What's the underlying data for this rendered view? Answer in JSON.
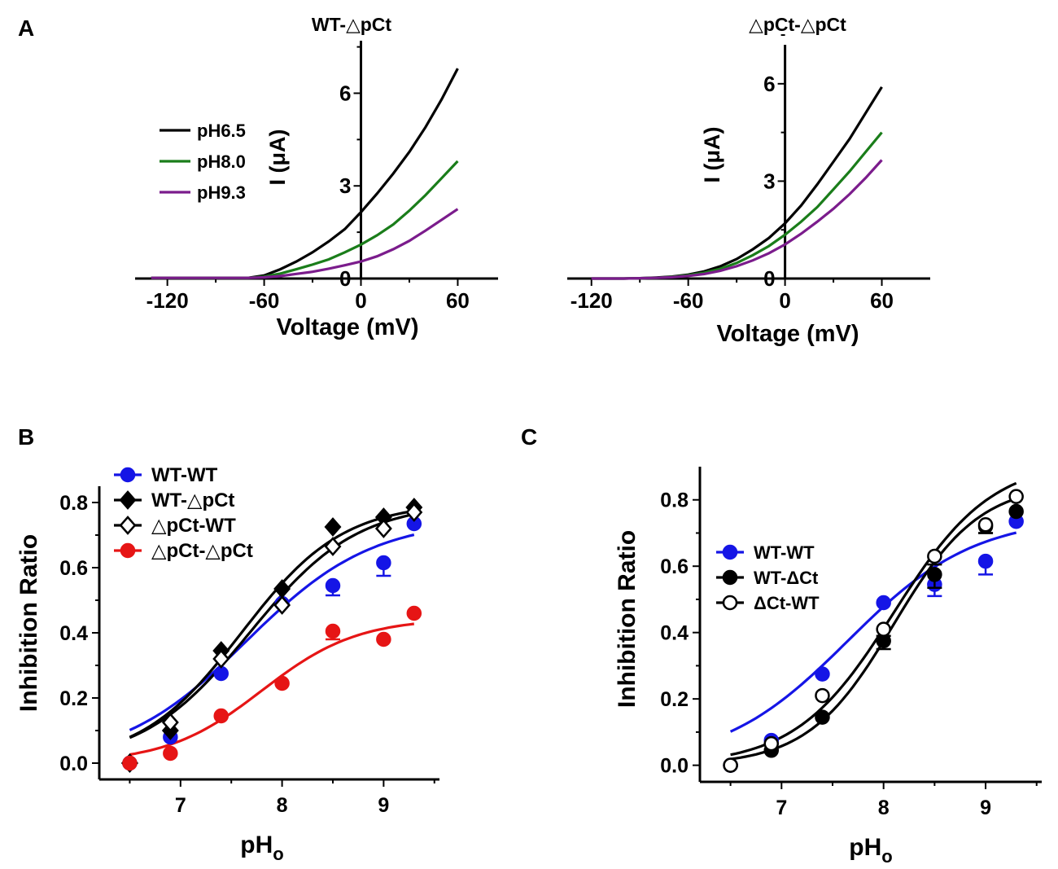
{
  "panel_labels": {
    "a": "A",
    "b": "B",
    "c": "C"
  },
  "chart_data": [
    {
      "id": "A1",
      "type": "line",
      "title": "WT-△pCt",
      "xlabel": "Voltage (mV)",
      "ylabel": "I (μA)",
      "xlim": [
        -140,
        85
      ],
      "ylim": [
        0,
        7.7
      ],
      "xticks": [
        -120,
        -60,
        0,
        60
      ],
      "xtick_labels": [
        "-120",
        "-60",
        "0",
        "60"
      ],
      "yticks": [
        0,
        3,
        6
      ],
      "ytick_labels": [
        "0",
        "3",
        "6"
      ],
      "legend": "left",
      "series": [
        {
          "name": "pH6.5",
          "color": "#000000",
          "x": [
            -130,
            -120,
            -110,
            -100,
            -90,
            -80,
            -70,
            -60,
            -50,
            -40,
            -30,
            -20,
            -10,
            0,
            10,
            20,
            30,
            40,
            50,
            60
          ],
          "y": [
            0.02,
            0.02,
            0.02,
            0.02,
            0.02,
            0.02,
            0.02,
            0.1,
            0.3,
            0.55,
            0.85,
            1.2,
            1.6,
            2.15,
            2.75,
            3.4,
            4.1,
            4.9,
            5.8,
            6.8
          ]
        },
        {
          "name": "pH8.0",
          "color": "#1a7d1a",
          "x": [
            -130,
            -120,
            -110,
            -100,
            -90,
            -80,
            -70,
            -60,
            -50,
            -40,
            -30,
            -20,
            -10,
            0,
            10,
            20,
            30,
            40,
            50,
            60
          ],
          "y": [
            0.02,
            0.02,
            0.02,
            0.02,
            0.02,
            0.02,
            0.02,
            0.06,
            0.16,
            0.3,
            0.45,
            0.62,
            0.85,
            1.1,
            1.4,
            1.75,
            2.2,
            2.7,
            3.25,
            3.8
          ]
        },
        {
          "name": "pH9.3",
          "color": "#7b1c8c",
          "x": [
            -130,
            -120,
            -110,
            -100,
            -90,
            -80,
            -70,
            -60,
            -50,
            -40,
            -30,
            -20,
            -10,
            0,
            10,
            20,
            30,
            40,
            50,
            60
          ],
          "y": [
            0.02,
            0.02,
            0.02,
            0.02,
            0.02,
            0.02,
            0.02,
            0.04,
            0.08,
            0.15,
            0.22,
            0.32,
            0.43,
            0.55,
            0.72,
            0.95,
            1.22,
            1.55,
            1.9,
            2.25
          ]
        }
      ]
    },
    {
      "id": "A2",
      "type": "line",
      "title": "△pCt-△pCt",
      "xlabel": "Voltage (mV)",
      "ylabel": "I (μA)",
      "xlim": [
        -135,
        90
      ],
      "ylim": [
        0,
        7.2
      ],
      "xticks": [
        -120,
        -60,
        0,
        60
      ],
      "xtick_labels": [
        "-120",
        "-60",
        "0",
        "60"
      ],
      "yticks": [
        0,
        3,
        6
      ],
      "ytick_labels": [
        "0",
        "3",
        "6"
      ],
      "series": [
        {
          "name": "pH6.5",
          "color": "#000000",
          "x": [
            -120,
            -110,
            -100,
            -90,
            -80,
            -70,
            -60,
            -50,
            -40,
            -30,
            -20,
            -10,
            0,
            10,
            20,
            30,
            40,
            50,
            60
          ],
          "y": [
            0.0,
            0.0,
            0.0,
            0.01,
            0.03,
            0.06,
            0.12,
            0.22,
            0.38,
            0.6,
            0.9,
            1.25,
            1.7,
            2.25,
            2.9,
            3.6,
            4.3,
            5.1,
            5.9
          ]
        },
        {
          "name": "pH8.0",
          "color": "#1a7d1a",
          "x": [
            -120,
            -110,
            -100,
            -90,
            -80,
            -70,
            -60,
            -50,
            -40,
            -30,
            -20,
            -10,
            0,
            10,
            20,
            30,
            40,
            50,
            60
          ],
          "y": [
            0.0,
            0.0,
            0.0,
            0.01,
            0.02,
            0.05,
            0.1,
            0.18,
            0.3,
            0.48,
            0.72,
            1.0,
            1.35,
            1.75,
            2.2,
            2.75,
            3.3,
            3.9,
            4.5
          ]
        },
        {
          "name": "pH9.3",
          "color": "#7b1c8c",
          "x": [
            -120,
            -110,
            -100,
            -90,
            -80,
            -70,
            -60,
            -50,
            -40,
            -30,
            -20,
            -10,
            0,
            10,
            20,
            30,
            40,
            50,
            60
          ],
          "y": [
            0.0,
            0.0,
            0.0,
            0.01,
            0.02,
            0.04,
            0.08,
            0.14,
            0.24,
            0.38,
            0.56,
            0.78,
            1.05,
            1.38,
            1.75,
            2.15,
            2.6,
            3.1,
            3.65
          ]
        }
      ]
    },
    {
      "id": "B",
      "type": "scatter",
      "title": "",
      "xlabel": "pH",
      "xlabel_sub": "o",
      "ylabel": "Inhibition Ratio",
      "xlim": [
        6.2,
        9.55
      ],
      "ylim": [
        -0.05,
        0.85
      ],
      "xticks": [
        7,
        8,
        9
      ],
      "xtick_labels": [
        "7",
        "8",
        "9"
      ],
      "yticks": [
        0.0,
        0.2,
        0.4,
        0.6,
        0.8
      ],
      "ytick_labels": [
        "0.0",
        "0.2",
        "0.4",
        "0.6",
        "0.8"
      ],
      "legend": "top-left",
      "series": [
        {
          "name": "WT-WT",
          "color": "#1515e6",
          "marker": "circle",
          "filled": true,
          "x": [
            6.5,
            6.9,
            7.4,
            8.0,
            8.5,
            9.0,
            9.3
          ],
          "y": [
            0.0,
            0.08,
            0.275,
            0.49,
            0.545,
            0.615,
            0.735
          ],
          "err": [
            0,
            0,
            0,
            0,
            0.03,
            0.04,
            0
          ],
          "fit": {
            "bottom": 0.0,
            "top": 0.75,
            "mid": 7.65,
            "slope": 0.62
          }
        },
        {
          "name": "WT-△pCt",
          "color": "#000000",
          "marker": "diamond",
          "filled": true,
          "x": [
            6.5,
            6.9,
            7.4,
            8.0,
            8.5,
            9.0,
            9.3
          ],
          "y": [
            0.0,
            0.1,
            0.345,
            0.535,
            0.725,
            0.755,
            0.785
          ],
          "err": [
            0,
            0,
            0,
            0,
            0,
            0,
            0
          ],
          "fit": {
            "bottom": 0.0,
            "top": 0.8,
            "mid": 7.6,
            "slope": 0.5
          }
        },
        {
          "name": "△pCt-WT",
          "color": "#000000",
          "marker": "diamond",
          "filled": false,
          "x": [
            6.5,
            6.9,
            7.4,
            8.0,
            8.5,
            9.0,
            9.3
          ],
          "y": [
            0.0,
            0.125,
            0.32,
            0.485,
            0.665,
            0.72,
            0.77
          ],
          "err": [
            0,
            0,
            0,
            0,
            0,
            0,
            0
          ],
          "fit": {
            "bottom": 0.0,
            "top": 0.8,
            "mid": 7.68,
            "slope": 0.53
          }
        },
        {
          "name": "△pCt-△pCt",
          "color": "#e61515",
          "marker": "circle",
          "filled": true,
          "x": [
            6.5,
            6.9,
            7.4,
            8.0,
            8.5,
            9.0,
            9.3
          ],
          "y": [
            0.0,
            0.03,
            0.145,
            0.245,
            0.405,
            0.38,
            0.46
          ],
          "err": [
            0,
            0,
            0,
            0,
            0.025,
            0,
            0
          ],
          "fit": {
            "bottom": 0.0,
            "top": 0.445,
            "mid": 7.8,
            "slope": 0.47
          }
        }
      ]
    },
    {
      "id": "C",
      "type": "scatter",
      "title": "",
      "xlabel": "pH",
      "xlabel_sub": "o",
      "ylabel": "Inhibition Ratio",
      "xlim": [
        6.2,
        9.55
      ],
      "ylim": [
        -0.05,
        0.9
      ],
      "xticks": [
        7,
        8,
        9
      ],
      "xtick_labels": [
        "7",
        "8",
        "9"
      ],
      "yticks": [
        0.0,
        0.2,
        0.4,
        0.6,
        0.8
      ],
      "ytick_labels": [
        "0.0",
        "0.2",
        "0.4",
        "0.6",
        "0.8"
      ],
      "legend": "middle-left",
      "series": [
        {
          "name": "WT-WT",
          "color": "#1515e6",
          "marker": "circle",
          "filled": true,
          "x": [
            6.5,
            6.9,
            7.4,
            8.0,
            8.5,
            9.0,
            9.3
          ],
          "y": [
            0.0,
            0.075,
            0.275,
            0.49,
            0.545,
            0.615,
            0.735
          ],
          "err": [
            0,
            0,
            0,
            0,
            0.035,
            0.04,
            0
          ],
          "fit": {
            "bottom": 0.0,
            "top": 0.75,
            "mid": 7.65,
            "slope": 0.62
          }
        },
        {
          "name": "WT-ΔCt",
          "color": "#000000",
          "marker": "circle",
          "filled": true,
          "x": [
            6.5,
            6.9,
            7.4,
            8.0,
            8.5,
            9.0,
            9.3
          ],
          "y": [
            0.0,
            0.045,
            0.145,
            0.375,
            0.575,
            0.72,
            0.765
          ],
          "err": [
            0,
            0,
            0,
            0.025,
            0.04,
            0.02,
            0
          ],
          "fit": {
            "bottom": 0.0,
            "top": 0.85,
            "mid": 8.1,
            "slope": 0.42
          }
        },
        {
          "name": "ΔCt-WT",
          "color": "#000000",
          "marker": "circle",
          "filled": false,
          "x": [
            6.5,
            6.9,
            7.4,
            8.0,
            8.5,
            9.0,
            9.3
          ],
          "y": [
            0.0,
            0.065,
            0.21,
            0.41,
            0.63,
            0.725,
            0.81
          ],
          "err": [
            0,
            0,
            0,
            0.02,
            0.025,
            0.025,
            0
          ],
          "fit": {
            "bottom": 0.0,
            "top": 0.92,
            "mid": 8.1,
            "slope": 0.48
          }
        }
      ]
    }
  ]
}
